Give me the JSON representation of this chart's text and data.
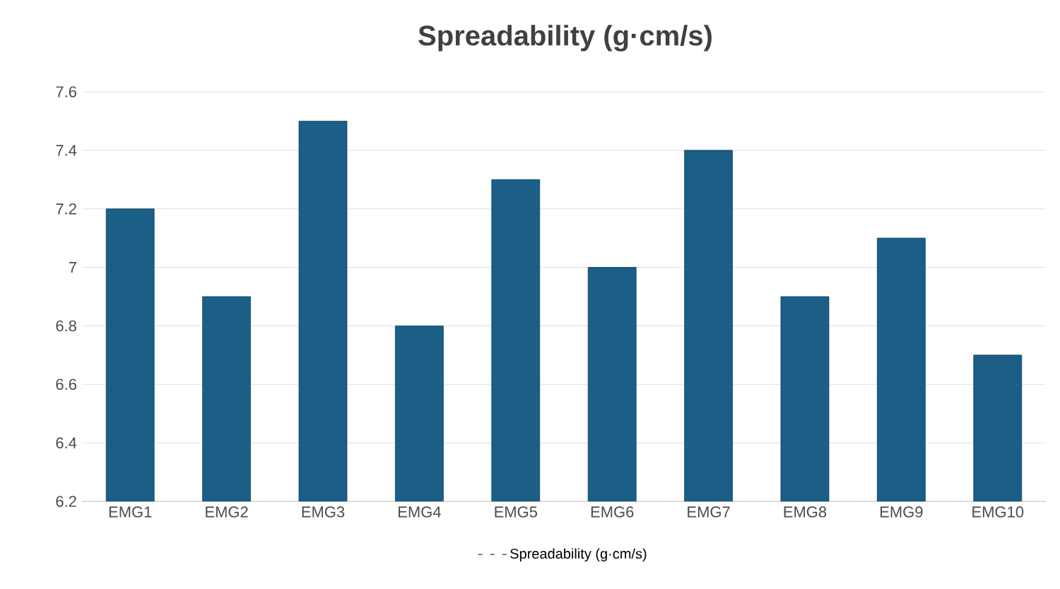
{
  "chart_data": {
    "type": "bar",
    "title": "Spreadability (g·cm/s)",
    "categories": [
      "EMG1",
      "EMG2",
      "EMG3",
      "EMG4",
      "EMG5",
      "EMG6",
      "EMG7",
      "EMG8",
      "EMG9",
      "EMG10"
    ],
    "series": [
      {
        "name": "Spreadability (g·cm/s)",
        "color": "#1b5e86",
        "values": [
          7.2,
          6.9,
          7.5,
          6.8,
          7.3,
          7.0,
          7.4,
          6.9,
          7.1,
          6.7
        ]
      }
    ],
    "ylim": [
      6.2,
      7.6
    ],
    "yticks": [
      6.2,
      6.4,
      6.6,
      6.8,
      7,
      7.2,
      7.4,
      7.6
    ],
    "grid": "y",
    "legend": "bottom"
  }
}
